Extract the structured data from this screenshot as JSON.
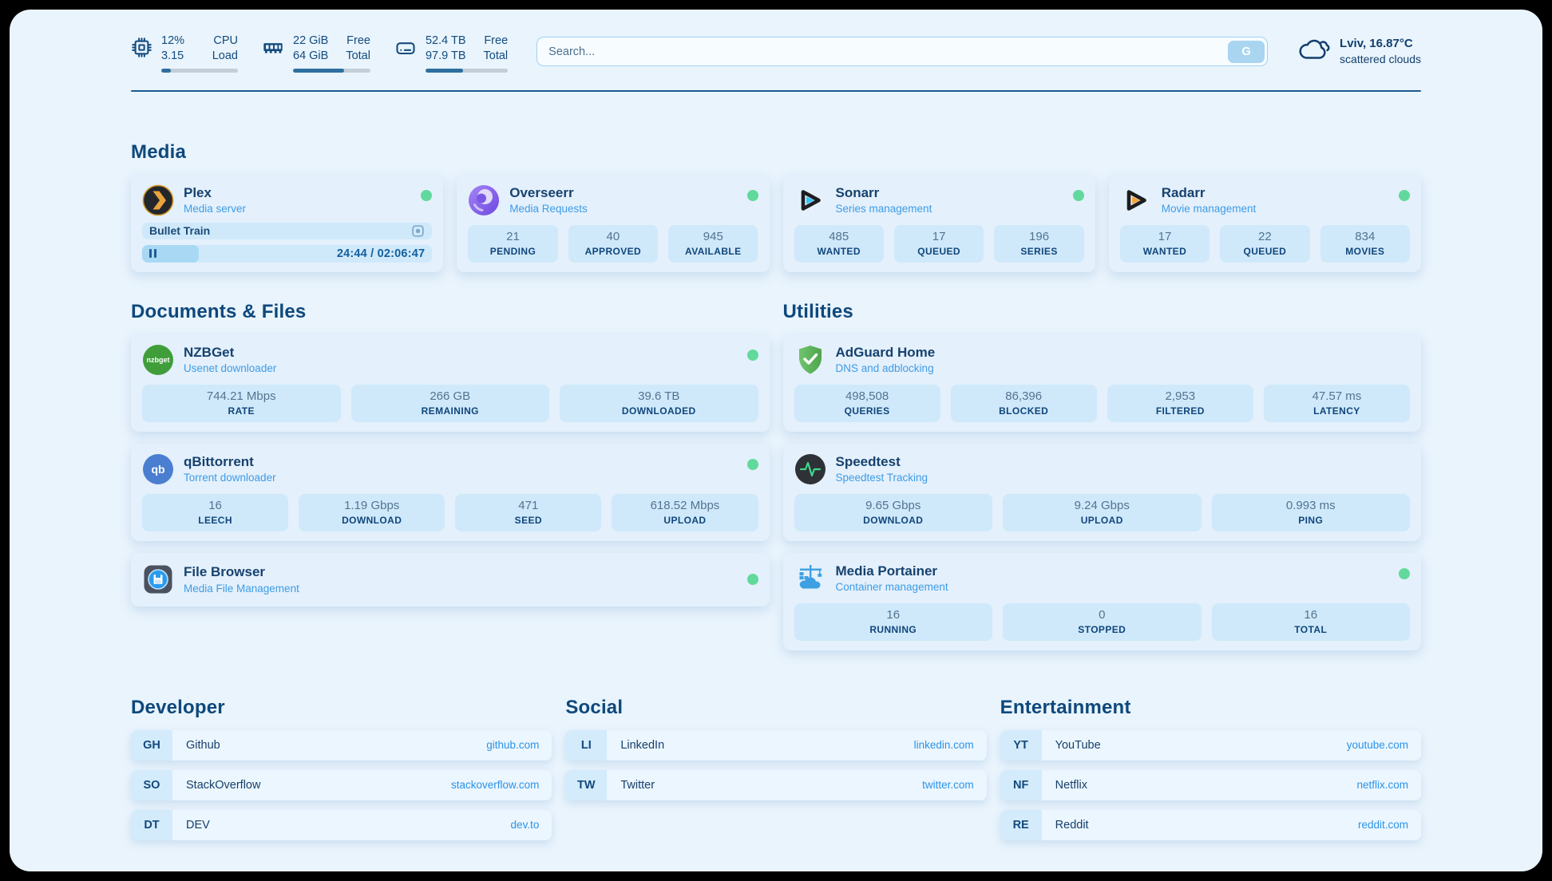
{
  "header": {
    "system": [
      {
        "icon": "cpu-icon",
        "values": [
          "12%",
          "3.15"
        ],
        "labels": [
          "CPU",
          "Load"
        ],
        "progress": 12
      },
      {
        "icon": "ram-icon",
        "values": [
          "22 GiB",
          "64 GiB"
        ],
        "labels": [
          "Free",
          "Total"
        ],
        "progress": 66
      },
      {
        "icon": "disk-icon",
        "values": [
          "52.4 TB",
          "97.9 TB"
        ],
        "labels": [
          "Free",
          "Total"
        ],
        "progress": 46
      }
    ],
    "search": {
      "placeholder": "Search...",
      "button_label": "G"
    },
    "weather": {
      "location": "Lviv, 16.87°C",
      "condition": "scattered clouds"
    }
  },
  "media": {
    "title": "Media",
    "plex": {
      "name": "Plex",
      "desc": "Media server",
      "now_playing": "Bullet Train",
      "time": "24:44 / 02:06:47",
      "progress": 19.5
    },
    "overseerr": {
      "name": "Overseerr",
      "desc": "Media Requests",
      "stats": [
        {
          "v": "21",
          "l": "PENDING"
        },
        {
          "v": "40",
          "l": "APPROVED"
        },
        {
          "v": "945",
          "l": "AVAILABLE"
        }
      ]
    },
    "sonarr": {
      "name": "Sonarr",
      "desc": "Series management",
      "stats": [
        {
          "v": "485",
          "l": "WANTED"
        },
        {
          "v": "17",
          "l": "QUEUED"
        },
        {
          "v": "196",
          "l": "SERIES"
        }
      ]
    },
    "radarr": {
      "name": "Radarr",
      "desc": "Movie management",
      "stats": [
        {
          "v": "17",
          "l": "WANTED"
        },
        {
          "v": "22",
          "l": "QUEUED"
        },
        {
          "v": "834",
          "l": "MOVIES"
        }
      ]
    }
  },
  "documents": {
    "title": "Documents & Files",
    "nzbget": {
      "name": "NZBGet",
      "desc": "Usenet downloader",
      "icon_text": "nzbget",
      "stats": [
        {
          "v": "744.21 Mbps",
          "l": "RATE"
        },
        {
          "v": "266 GB",
          "l": "REMAINING"
        },
        {
          "v": "39.6 TB",
          "l": "DOWNLOADED"
        }
      ]
    },
    "qbittorrent": {
      "name": "qBittorrent",
      "desc": "Torrent downloader",
      "icon_text": "qb",
      "stats": [
        {
          "v": "16",
          "l": "LEECH"
        },
        {
          "v": "1.19 Gbps",
          "l": "DOWNLOAD"
        },
        {
          "v": "471",
          "l": "SEED"
        },
        {
          "v": "618.52 Mbps",
          "l": "UPLOAD"
        }
      ]
    },
    "filebrowser": {
      "name": "File Browser",
      "desc": "Media File Management"
    }
  },
  "utilities": {
    "title": "Utilities",
    "adguard": {
      "name": "AdGuard Home",
      "desc": "DNS and adblocking",
      "stats": [
        {
          "v": "498,508",
          "l": "QUERIES"
        },
        {
          "v": "86,396",
          "l": "BLOCKED"
        },
        {
          "v": "2,953",
          "l": "FILTERED"
        },
        {
          "v": "47.57 ms",
          "l": "LATENCY"
        }
      ]
    },
    "speedtest": {
      "name": "Speedtest",
      "desc": "Speedtest Tracking",
      "stats": [
        {
          "v": "9.65 Gbps",
          "l": "DOWNLOAD"
        },
        {
          "v": "9.24 Gbps",
          "l": "UPLOAD"
        },
        {
          "v": "0.993 ms",
          "l": "PING"
        }
      ]
    },
    "portainer": {
      "name": "Media Portainer",
      "desc": "Container management",
      "stats": [
        {
          "v": "16",
          "l": "RUNNING"
        },
        {
          "v": "0",
          "l": "STOPPED"
        },
        {
          "v": "16",
          "l": "TOTAL"
        }
      ]
    }
  },
  "links": {
    "developer": {
      "title": "Developer",
      "items": [
        {
          "abbr": "GH",
          "name": "Github",
          "url": "github.com"
        },
        {
          "abbr": "SO",
          "name": "StackOverflow",
          "url": "stackoverflow.com"
        },
        {
          "abbr": "DT",
          "name": "DEV",
          "url": "dev.to"
        }
      ]
    },
    "social": {
      "title": "Social",
      "items": [
        {
          "abbr": "LI",
          "name": "LinkedIn",
          "url": "linkedin.com"
        },
        {
          "abbr": "TW",
          "name": "Twitter",
          "url": "twitter.com"
        }
      ]
    },
    "entertainment": {
      "title": "Entertainment",
      "items": [
        {
          "abbr": "YT",
          "name": "YouTube",
          "url": "youtube.com"
        },
        {
          "abbr": "NF",
          "name": "Netflix",
          "url": "netflix.com"
        },
        {
          "abbr": "RE",
          "name": "Reddit",
          "url": "reddit.com"
        }
      ]
    }
  },
  "colors": {
    "accent_blue": "#2a93e8",
    "navy": "#14497c",
    "green_status": "#62d99c",
    "bar_fill": "#2d6f9f"
  }
}
